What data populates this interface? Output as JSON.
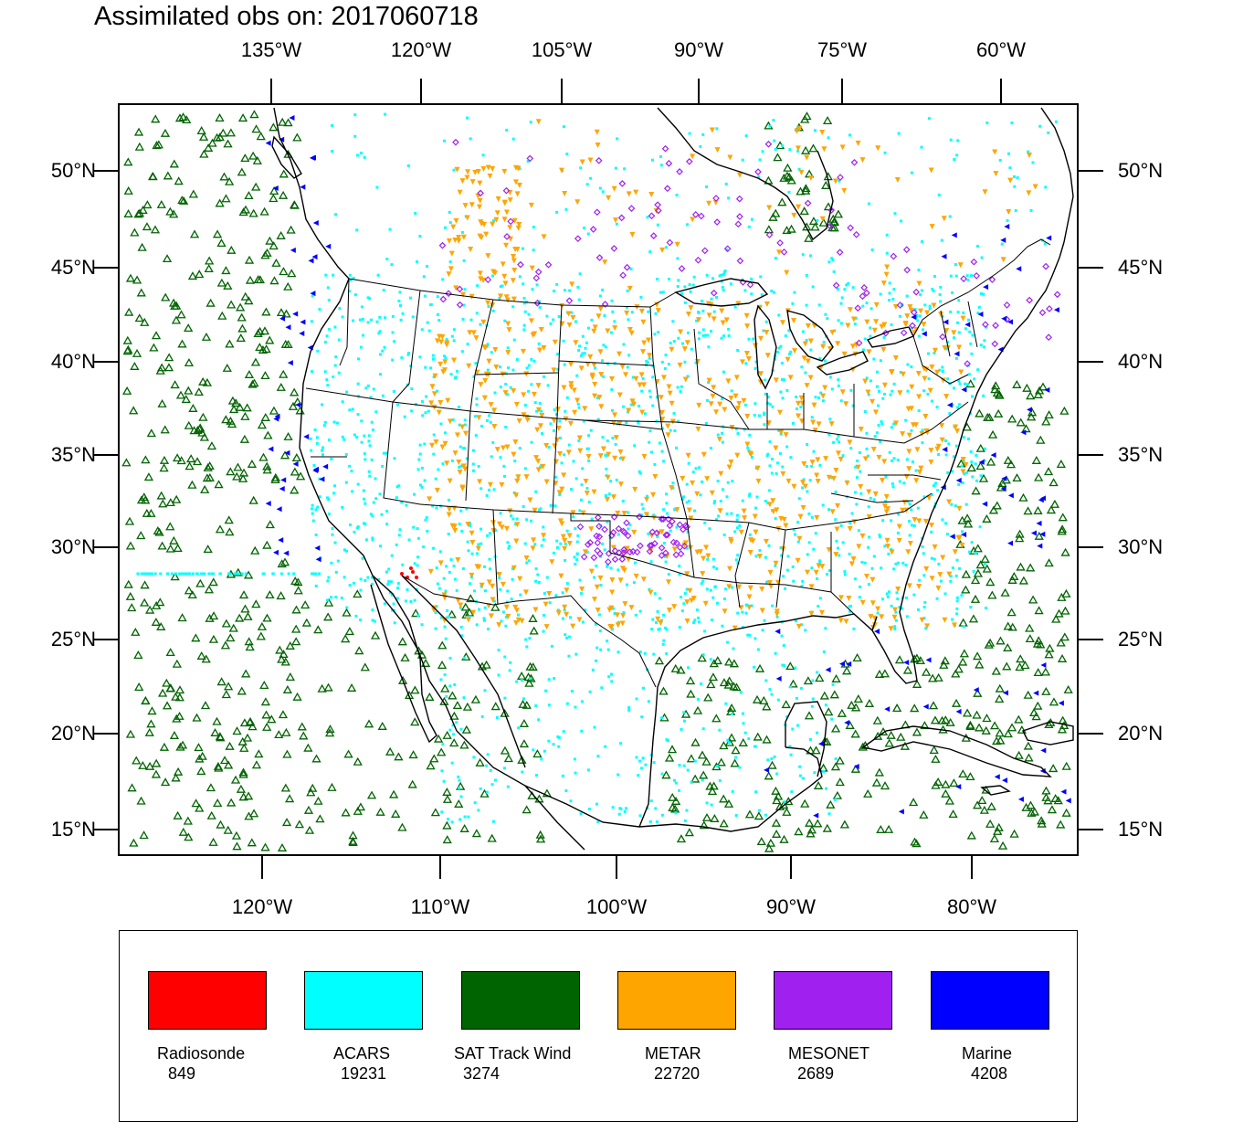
{
  "title": "Assimilated obs on: 2017060718",
  "map": {
    "top_lon_labels": [
      "135°W",
      "120°W",
      "105°W",
      "90°W",
      "75°W",
      "60°W"
    ],
    "bottom_lon_labels": [
      "120°W",
      "110°W",
      "100°W",
      "90°W",
      "80°W"
    ],
    "lat_labels": [
      "50°N",
      "45°N",
      "40°N",
      "35°N",
      "30°N",
      "25°N",
      "20°N",
      "15°N"
    ],
    "projection": "Lambert conformal, CONUS"
  },
  "legend": {
    "items": [
      {
        "name": "Radiosonde",
        "count": "849",
        "color": "#ff0000"
      },
      {
        "name": "ACARS",
        "count": "19231",
        "color": "#00ffff"
      },
      {
        "name": "SAT Track Wind",
        "count": "3274",
        "color": "#006400"
      },
      {
        "name": "METAR",
        "count": "22720",
        "color": "#ffa500"
      },
      {
        "name": "MESONET",
        "count": "2689",
        "color": "#a020f0"
      },
      {
        "name": "Marine",
        "count": "4208",
        "color": "#0000ff"
      }
    ]
  }
}
